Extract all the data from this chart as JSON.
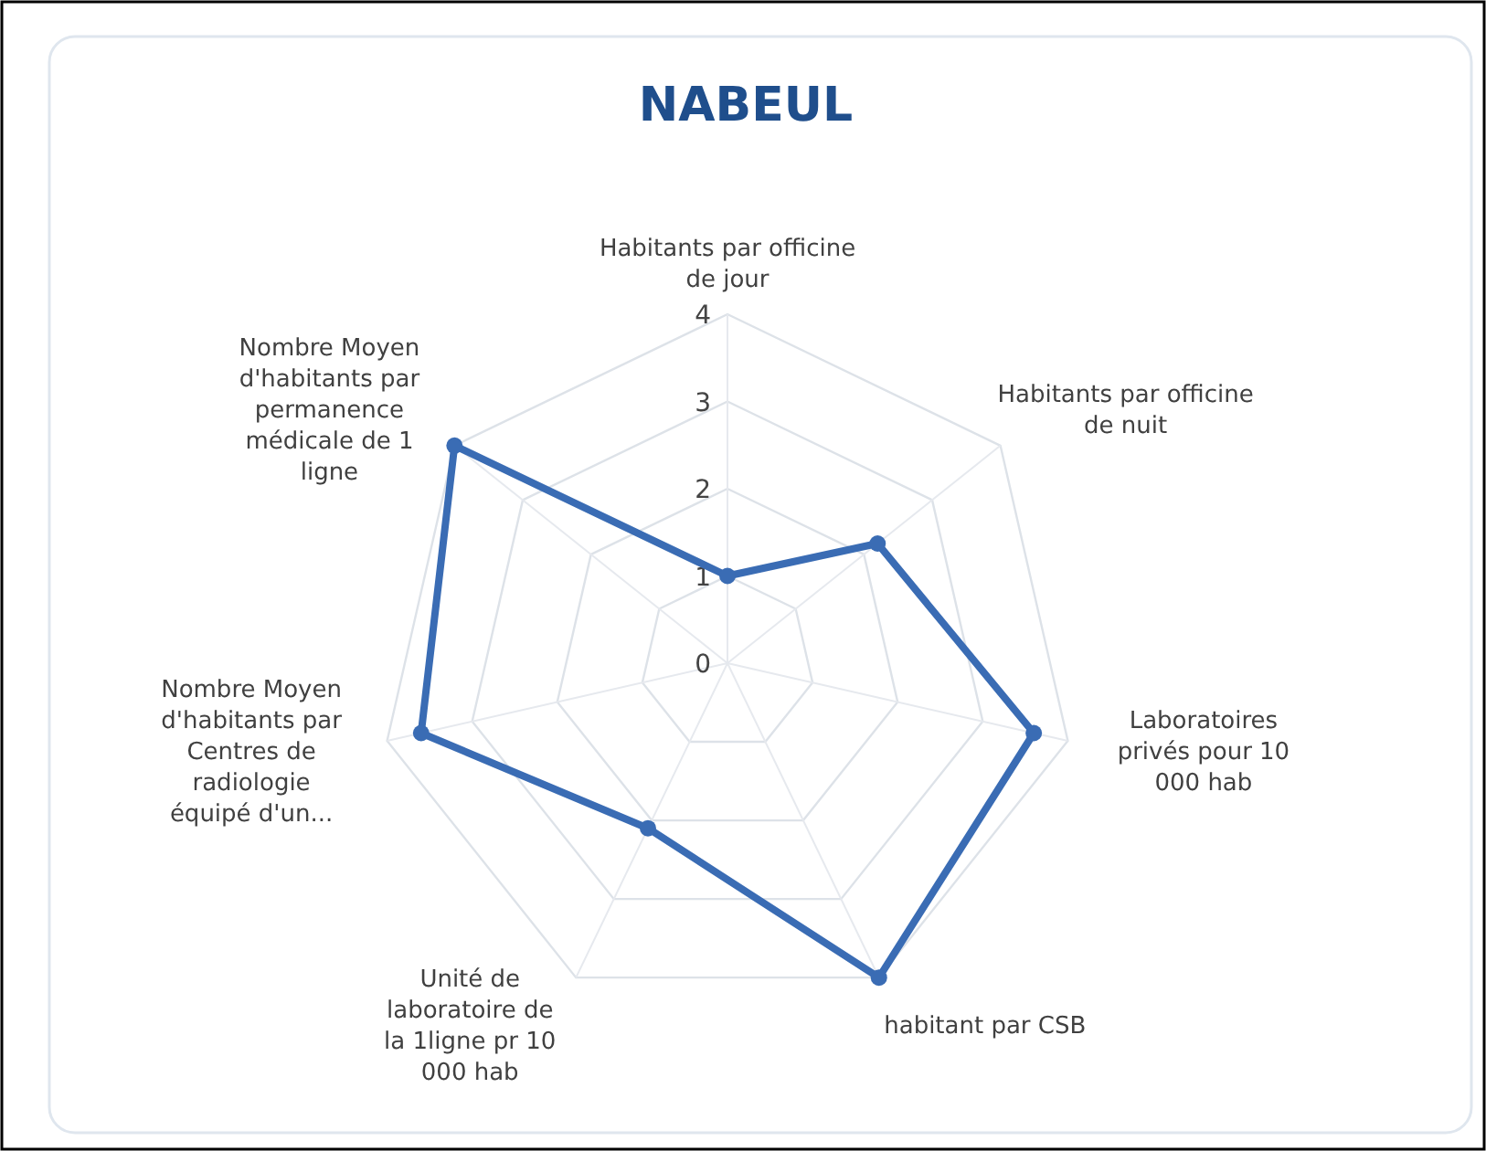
{
  "chart_data": {
    "type": "radar",
    "title": "NABEUL",
    "categories": [
      "Habitants par officine de jour",
      "Habitants par officine de nuit",
      "Laboratoires privés pour 10 000 hab",
      "habitant par CSB",
      "Unité de laboratoire de la 1ligne pr 10 000 hab",
      "Nombre Moyen d'habitants par Centres de radiologie équipé d'un...",
      "Nombre Moyen d'habitants par permanence médicale de 1 ligne"
    ],
    "series": [
      {
        "color": "#3a6cb4",
        "values": [
          1,
          2.2,
          3.6,
          4,
          2.1,
          3.6,
          4
        ]
      }
    ],
    "ylim": [
      0,
      4
    ],
    "yticks": [
      0,
      1,
      2,
      3,
      4
    ],
    "grid": true,
    "marker": "circle",
    "line_style": "solid"
  }
}
